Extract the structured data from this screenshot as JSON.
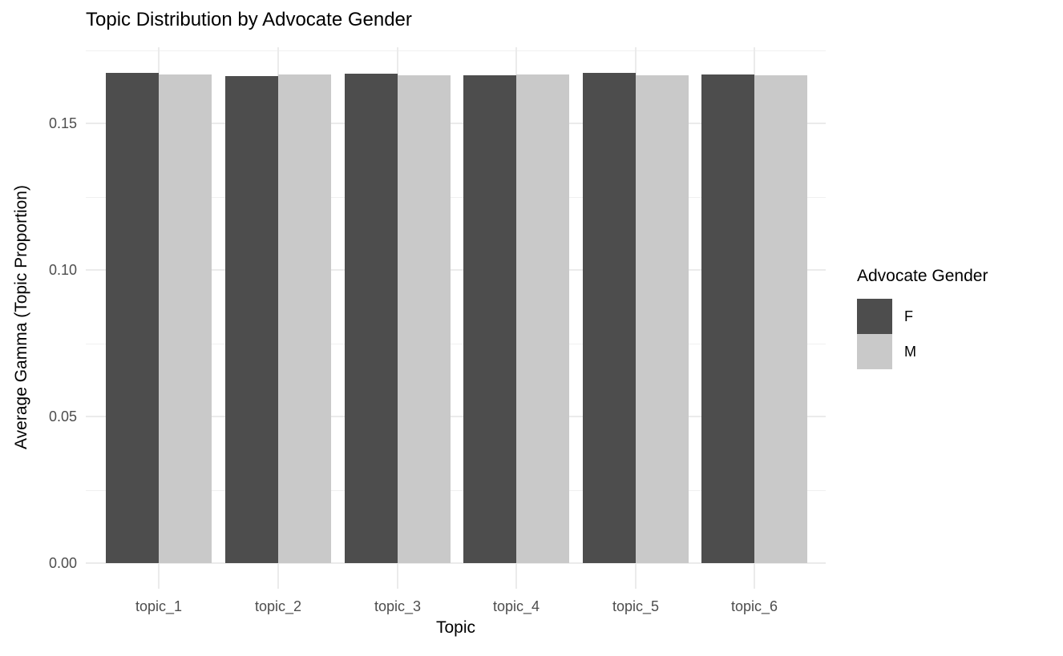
{
  "title": "Topic Distribution by Advocate Gender",
  "chart_data": {
    "type": "bar",
    "grouped": true,
    "title": "Topic Distribution by Advocate Gender",
    "xlabel": "Topic",
    "ylabel": "Average Gamma (Topic Proportion)",
    "categories": [
      "topic_1",
      "topic_2",
      "topic_3",
      "topic_4",
      "topic_5",
      "topic_6"
    ],
    "series": [
      {
        "name": "F",
        "color": "#4d4d4d",
        "values": [
          0.1672,
          0.166,
          0.1669,
          0.1664,
          0.1671,
          0.1668
        ]
      },
      {
        "name": "M",
        "color": "#c9c9c9",
        "values": [
          0.1667,
          0.1667,
          0.1665,
          0.1667,
          0.1665,
          0.1664
        ]
      }
    ],
    "y_ticks": [
      {
        "label": "0.00",
        "value": 0.0
      },
      {
        "label": "0.05",
        "value": 0.05
      },
      {
        "label": "0.10",
        "value": 0.1
      },
      {
        "label": "0.15",
        "value": 0.15
      }
    ],
    "y_minor_ticks": [
      0.025,
      0.075,
      0.125,
      0.175
    ],
    "ylim": [
      0,
      0.176
    ],
    "legend_title": "Advocate Gender",
    "legend_position": "right",
    "grid": "horizontal major+minor, vertical major",
    "background_color": "#ffffff",
    "gridline_color": "#ebebeb",
    "tick_label_color": "#4d4d4d"
  }
}
